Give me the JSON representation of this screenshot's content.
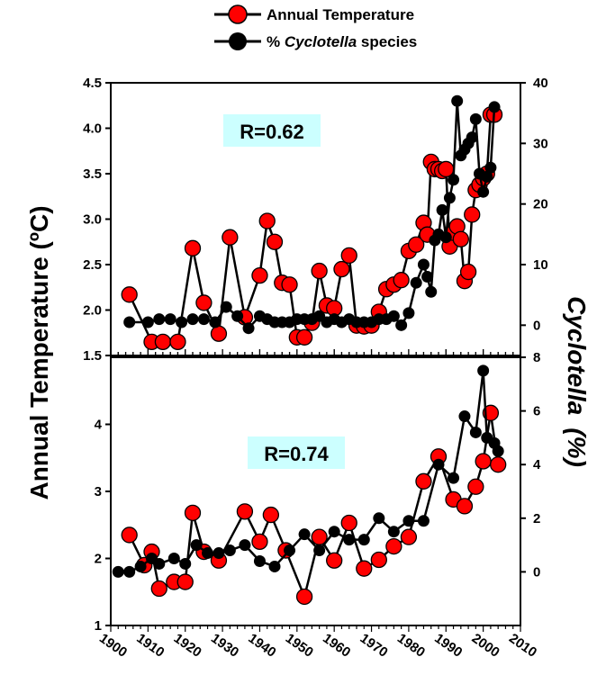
{
  "legend": {
    "temp_label": "Annual Temperature",
    "cyc_prefix": "% ",
    "cyc_italic": "Cyclotella",
    "cyc_suffix": " species"
  },
  "left_axis_label": "Annual Temperature (ºC)",
  "right_axis_label_italic": "Cyclotella",
  "right_axis_label_suffix": "(%)",
  "colors": {
    "temperature": "#ff0000",
    "cyclotella": "#000000",
    "r_box": "#ccffff"
  },
  "chart_data": [
    {
      "type": "line",
      "panel": "top",
      "annotation": "R=0.62",
      "xlim": [
        1900,
        2010
      ],
      "ylim_left": [
        1.5,
        4.5
      ],
      "yticks_left": [
        "1.5",
        "2.0",
        "2.5",
        "3.0",
        "3.5",
        "4.0",
        "4.5"
      ],
      "ylim_right": [
        -5,
        40
      ],
      "yticks_right": [
        "0",
        "10",
        "20",
        "30",
        "40"
      ],
      "series": [
        {
          "name": "Annual Temperature",
          "axis": "left",
          "x": [
            1905,
            1911,
            1914,
            1918,
            1922,
            1925,
            1929,
            1932,
            1936,
            1940,
            1942,
            1944,
            1946,
            1948,
            1950,
            1952,
            1954,
            1956,
            1958,
            1960,
            1962,
            1964,
            1966,
            1968,
            1970,
            1972,
            1974,
            1976,
            1978,
            1980,
            1982,
            1984,
            1985,
            1986,
            1987,
            1988,
            1989,
            1990,
            1991,
            1992,
            1993,
            1994,
            1995,
            1996,
            1997,
            1998,
            1999,
            2000,
            2001,
            2002,
            2003
          ],
          "y": [
            2.17,
            1.65,
            1.65,
            1.65,
            2.68,
            2.08,
            1.74,
            2.8,
            1.92,
            2.38,
            2.98,
            2.75,
            2.3,
            2.28,
            1.7,
            1.7,
            1.86,
            2.43,
            2.05,
            2.02,
            2.45,
            2.6,
            1.83,
            1.82,
            1.83,
            1.98,
            2.23,
            2.28,
            2.33,
            2.65,
            2.72,
            2.96,
            2.83,
            3.63,
            3.55,
            3.55,
            3.53,
            3.55,
            2.7,
            2.85,
            2.92,
            2.78,
            2.32,
            2.42,
            3.05,
            3.32,
            3.38,
            3.45,
            3.5,
            4.15,
            4.15
          ]
        },
        {
          "name": "% Cyclotella species",
          "axis": "right",
          "x": [
            1905,
            1910,
            1913,
            1916,
            1919,
            1922,
            1925,
            1928,
            1931,
            1934,
            1937,
            1940,
            1942,
            1944,
            1946,
            1948,
            1950,
            1952,
            1954,
            1956,
            1958,
            1960,
            1962,
            1964,
            1966,
            1968,
            1970,
            1972,
            1974,
            1976,
            1978,
            1980,
            1982,
            1984,
            1985,
            1986,
            1987,
            1988,
            1989,
            1990,
            1991,
            1992,
            1993,
            1994,
            1995,
            1996,
            1997,
            1998,
            1999,
            2000,
            2001,
            2002,
            2003
          ],
          "y": [
            0.5,
            0.5,
            1.0,
            1.0,
            0.5,
            1.0,
            1.0,
            0.5,
            3.0,
            1.5,
            -0.5,
            1.5,
            1.0,
            0.5,
            0.5,
            0.5,
            1.0,
            1.0,
            1.0,
            1.5,
            0.5,
            1.0,
            0.5,
            1.0,
            0.5,
            0.5,
            0.5,
            1.0,
            1.0,
            1.5,
            0.0,
            2.0,
            7.0,
            10.0,
            8.0,
            5.5,
            14.0,
            15.0,
            19.0,
            14.5,
            21.0,
            24.0,
            37.0,
            28.0,
            29.0,
            30.0,
            31.0,
            34.0,
            25.0,
            22.0,
            24.5,
            26.0,
            36.0
          ]
        }
      ]
    },
    {
      "type": "line",
      "panel": "bottom",
      "annotation": "R=0.74",
      "xlim": [
        1900,
        2010
      ],
      "xticks": [
        "1900",
        "1910",
        "1920",
        "1930",
        "1940",
        "1950",
        "1960",
        "1970",
        "1980",
        "1990",
        "2000",
        "2010"
      ],
      "ylim_left": [
        1,
        5
      ],
      "yticks_left": [
        "1",
        "2",
        "3",
        "4"
      ],
      "ylim_right": [
        -2,
        8
      ],
      "yticks_right": [
        "0",
        "2",
        "4",
        "6",
        "8"
      ],
      "series": [
        {
          "name": "Annual Temperature",
          "axis": "left",
          "x": [
            1905,
            1909,
            1911,
            1913,
            1917,
            1920,
            1922,
            1925,
            1929,
            1936,
            1940,
            1943,
            1947,
            1952,
            1956,
            1960,
            1964,
            1968,
            1972,
            1976,
            1980,
            1984,
            1988,
            1992,
            1995,
            1998,
            2000,
            2002,
            2004
          ],
          "y": [
            2.35,
            1.9,
            2.1,
            1.55,
            1.65,
            1.65,
            2.68,
            2.1,
            1.97,
            2.7,
            2.25,
            2.65,
            2.12,
            1.43,
            2.32,
            1.97,
            2.53,
            1.85,
            1.98,
            2.18,
            2.32,
            3.15,
            3.52,
            2.88,
            2.78,
            3.07,
            3.45,
            4.17,
            3.4
          ]
        },
        {
          "name": "% Cyclotella species",
          "axis": "right",
          "x": [
            1902,
            1905,
            1908,
            1911,
            1913,
            1917,
            1920,
            1923,
            1926,
            1929,
            1932,
            1936,
            1940,
            1944,
            1948,
            1952,
            1956,
            1960,
            1964,
            1968,
            1972,
            1976,
            1980,
            1984,
            1988,
            1992,
            1995,
            1998,
            2000,
            2001,
            2003,
            2004
          ],
          "y": [
            0.0,
            0.0,
            0.2,
            0.5,
            0.3,
            0.5,
            0.3,
            1.0,
            0.7,
            0.7,
            0.8,
            1.0,
            0.4,
            0.2,
            0.8,
            1.4,
            0.8,
            1.5,
            1.2,
            1.2,
            2.0,
            1.5,
            1.9,
            1.9,
            4.0,
            3.5,
            5.8,
            5.2,
            7.5,
            5.0,
            4.8,
            4.5
          ]
        }
      ]
    }
  ]
}
